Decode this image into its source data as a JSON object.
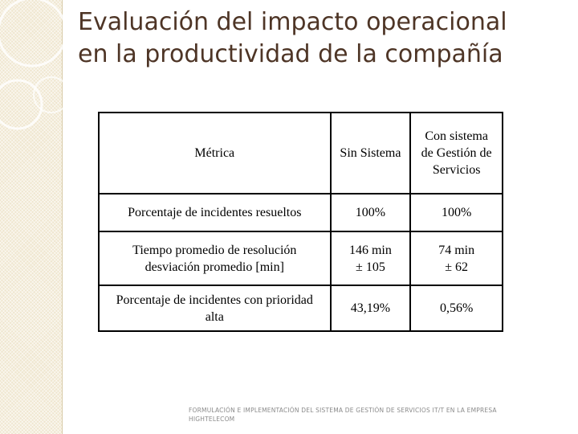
{
  "header": {
    "title": [
      "Evaluación del impacto operacional",
      "en la productividad de la compañía"
    ]
  },
  "table": {
    "header": [
      [
        "Métrica"
      ],
      [
        "Sin Sistema"
      ],
      [
        "Con sistema",
        "de Gestión de",
        "Servicios"
      ]
    ],
    "rows": [
      [
        [
          "Porcentaje de incidentes resueltos"
        ],
        [
          "100%"
        ],
        [
          "100%"
        ]
      ],
      [
        [
          "Tiempo promedio de resolución",
          "desviación promedio [min]"
        ],
        [
          "146 min",
          "± 105"
        ],
        [
          "74 min",
          "± 62"
        ]
      ],
      [
        [
          "Porcentaje de incidentes con prioridad",
          "alta"
        ],
        [
          "43,19%"
        ],
        [
          "0,56%"
        ]
      ]
    ]
  },
  "footer": {
    "text": [
      "FORMULACIÓN E IMPLEMENTACIÓN DEL SISTEMA DE GESTIÓN DE SERVICIOS IT/T EN LA EMPRESA",
      "HIGHTELECOM"
    ]
  }
}
